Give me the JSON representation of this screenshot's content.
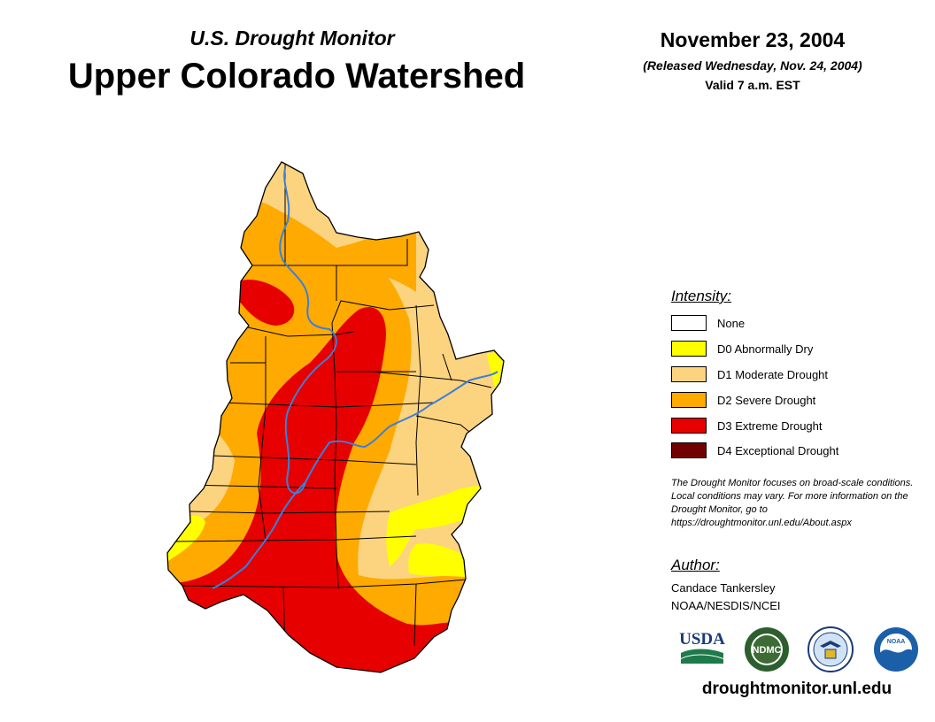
{
  "header": {
    "subtitle": "U.S. Drought Monitor",
    "title": "Upper Colorado Watershed",
    "date": "November 23, 2004",
    "released": "(Released Wednesday, Nov. 24, 2004)",
    "valid": "Valid 7 a.m. EST"
  },
  "legend": {
    "title": "Intensity:",
    "items": [
      {
        "label": "None",
        "color": "#ffffff"
      },
      {
        "label": "D0 Abnormally Dry",
        "color": "#ffff00"
      },
      {
        "label": "D1 Moderate Drought",
        "color": "#fcd37f"
      },
      {
        "label": "D2 Severe Drought",
        "color": "#ffaa00"
      },
      {
        "label": "D3 Extreme Drought",
        "color": "#e60000"
      },
      {
        "label": "D4 Exceptional Drought",
        "color": "#730000"
      }
    ]
  },
  "note": "The Drought Monitor focuses on broad-scale conditions. Local conditions may vary. For more information on the Drought Monitor, go to https://droughtmonitor.unl.edu/About.aspx",
  "author": {
    "title": "Author:",
    "name": "Candace Tankersley",
    "org": "NOAA/NESDIS/NCEI"
  },
  "logos": {
    "usda": "USDA",
    "ndmc": "NDMC",
    "noaa": "NOAA"
  },
  "map": {
    "river_color": "#3b7fd9",
    "boundary_color": "#000000"
  },
  "footer": {
    "url": "droughtmonitor.unl.edu"
  }
}
